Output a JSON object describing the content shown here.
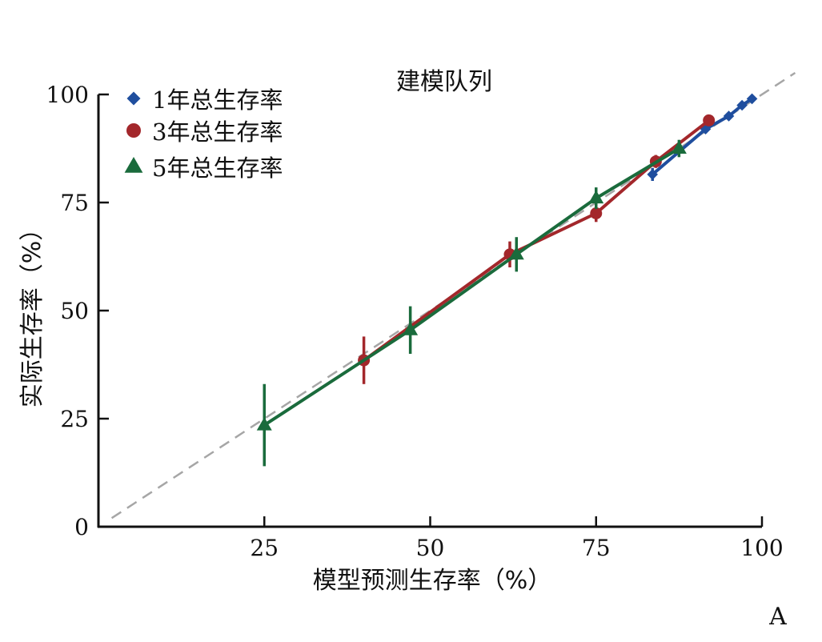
{
  "chart_data": {
    "type": "line",
    "title": "建模队列",
    "xlabel": "模型预测生存率（%）",
    "ylabel": "实际生存率（%）",
    "panel_label": "A",
    "xlim": [
      0,
      100
    ],
    "ylim": [
      0,
      100
    ],
    "xticks": [
      25,
      50,
      75,
      100
    ],
    "yticks": [
      0,
      25,
      50,
      75,
      100
    ],
    "reference_line": {
      "x": [
        2,
        105
      ],
      "y": [
        2,
        105
      ],
      "style": "dashed",
      "color": "#a6a6a6"
    },
    "grid": false,
    "legend_position": "top-left",
    "series": [
      {
        "name": "1年总生存率",
        "marker": "diamond",
        "color": "#1f4e9e",
        "points": [
          {
            "x": 83.5,
            "y": 81.5,
            "lo": 80.0,
            "hi": 83.0
          },
          {
            "x": 91.5,
            "y": 92.0,
            "lo": 91.0,
            "hi": 93.0
          },
          {
            "x": 95.0,
            "y": 95.0,
            "lo": 94.2,
            "hi": 95.8
          },
          {
            "x": 97.0,
            "y": 97.5,
            "lo": 96.9,
            "hi": 98.1
          },
          {
            "x": 98.5,
            "y": 99.0,
            "lo": 98.6,
            "hi": 99.4
          }
        ]
      },
      {
        "name": "3年总生存率",
        "marker": "circle",
        "color": "#a3272b",
        "points": [
          {
            "x": 40.0,
            "y": 38.5,
            "lo": 33.0,
            "hi": 44.0
          },
          {
            "x": 62.0,
            "y": 63.0,
            "lo": 60.0,
            "hi": 66.0
          },
          {
            "x": 75.0,
            "y": 72.5,
            "lo": 70.5,
            "hi": 74.5
          },
          {
            "x": 84.0,
            "y": 84.5,
            "lo": 83.0,
            "hi": 86.0
          },
          {
            "x": 92.0,
            "y": 94.0,
            "lo": 93.2,
            "hi": 94.8
          }
        ]
      },
      {
        "name": "5年总生存率",
        "marker": "triangle",
        "color": "#1a6b3c",
        "points": [
          {
            "x": 25.0,
            "y": 23.5,
            "lo": 14.0,
            "hi": 33.0
          },
          {
            "x": 47.0,
            "y": 45.5,
            "lo": 40.0,
            "hi": 51.0
          },
          {
            "x": 63.0,
            "y": 63.0,
            "lo": 59.0,
            "hi": 67.0
          },
          {
            "x": 75.0,
            "y": 76.0,
            "lo": 73.5,
            "hi": 78.5
          },
          {
            "x": 87.5,
            "y": 87.5,
            "lo": 85.5,
            "hi": 89.5
          }
        ]
      }
    ]
  }
}
